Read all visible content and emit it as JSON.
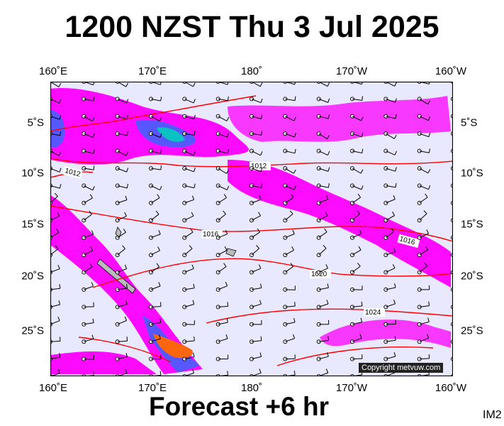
{
  "title": "1200 NZST Thu 3 Jul 2025",
  "footer": "Forecast +6 hr",
  "map_id": "IM2",
  "copyright": "Copyright metvuw.com",
  "top_axis_labels": [
    "160˚E",
    "170˚E",
    "180˚",
    "170˚W",
    "160˚W"
  ],
  "bottom_axis_labels": [
    "160˚E",
    "170˚E",
    "180˚",
    "170˚W",
    "160˚W"
  ],
  "left_axis_labels": [
    "5˚S",
    "10˚S",
    "15˚S",
    "20˚S",
    "25˚S"
  ],
  "right_axis_labels": [
    "5˚S",
    "10˚S",
    "15˚S",
    "20˚S",
    "25˚S"
  ],
  "isobar_labels": [
    "1012",
    "1012",
    "1016",
    "1016",
    "1020",
    "1024"
  ],
  "colors": {
    "ocean_background": "#e8e8ff",
    "isobar": "#ff0000",
    "rain_light": "#ff00ff",
    "rain_mid": "#5050ff",
    "rain_heavy": "#00c0c0",
    "rain_peak": "#ff6000",
    "land": "#bbbbbb"
  }
}
